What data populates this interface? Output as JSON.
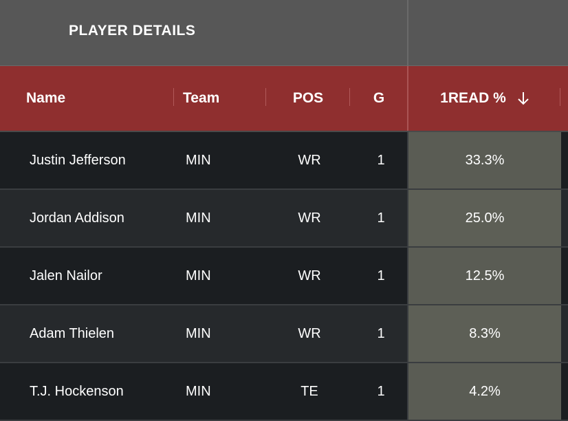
{
  "group_header": {
    "title": "PLAYER DETAILS"
  },
  "columns": {
    "name": "Name",
    "team": "Team",
    "pos": "POS",
    "g": "G",
    "read": "1READ %",
    "sort_icon": "arrow-down-icon"
  },
  "colors": {
    "header_bg": "#8f2f2f",
    "group_bg": "#575757",
    "highlight_cell": "#5a5c54"
  },
  "rows": [
    {
      "name": "Justin Jefferson",
      "team": "MIN",
      "pos": "WR",
      "g": "1",
      "read": "33.3%"
    },
    {
      "name": "Jordan Addison",
      "team": "MIN",
      "pos": "WR",
      "g": "1",
      "read": "25.0%"
    },
    {
      "name": "Jalen Nailor",
      "team": "MIN",
      "pos": "WR",
      "g": "1",
      "read": "12.5%"
    },
    {
      "name": "Adam Thielen",
      "team": "MIN",
      "pos": "WR",
      "g": "1",
      "read": "8.3%"
    },
    {
      "name": "T.J. Hockenson",
      "team": "MIN",
      "pos": "TE",
      "g": "1",
      "read": "4.2%"
    }
  ]
}
